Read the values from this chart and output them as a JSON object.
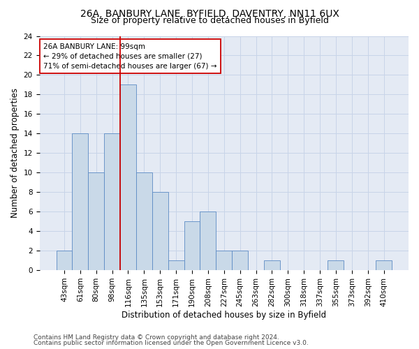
{
  "title_line1": "26A, BANBURY LANE, BYFIELD, DAVENTRY, NN11 6UX",
  "title_line2": "Size of property relative to detached houses in Byfield",
  "xlabel": "Distribution of detached houses by size in Byfield",
  "ylabel": "Number of detached properties",
  "categories": [
    "43sqm",
    "61sqm",
    "80sqm",
    "98sqm",
    "116sqm",
    "135sqm",
    "153sqm",
    "171sqm",
    "190sqm",
    "208sqm",
    "227sqm",
    "245sqm",
    "263sqm",
    "282sqm",
    "300sqm",
    "318sqm",
    "337sqm",
    "355sqm",
    "373sqm",
    "392sqm",
    "410sqm"
  ],
  "values": [
    2,
    14,
    10,
    14,
    19,
    10,
    8,
    1,
    5,
    6,
    2,
    2,
    0,
    1,
    0,
    0,
    0,
    1,
    0,
    0,
    1
  ],
  "bar_color": "#c9d9e8",
  "bar_edge_color": "#5b8ac4",
  "vline_x": 3.5,
  "vline_color": "#cc0000",
  "annotation_text": "26A BANBURY LANE: 99sqm\n← 29% of detached houses are smaller (27)\n71% of semi-detached houses are larger (67) →",
  "annotation_box_color": "#ffffff",
  "annotation_box_edge_color": "#cc0000",
  "ylim": [
    0,
    24
  ],
  "yticks": [
    0,
    2,
    4,
    6,
    8,
    10,
    12,
    14,
    16,
    18,
    20,
    22,
    24
  ],
  "grid_color": "#c8d4e8",
  "background_color": "#e4eaf4",
  "footer_line1": "Contains HM Land Registry data © Crown copyright and database right 2024.",
  "footer_line2": "Contains public sector information licensed under the Open Government Licence v3.0.",
  "title1_fontsize": 10,
  "title2_fontsize": 9,
  "axis_label_fontsize": 8.5,
  "tick_fontsize": 7.5,
  "annotation_fontsize": 7.5,
  "footer_fontsize": 6.5
}
